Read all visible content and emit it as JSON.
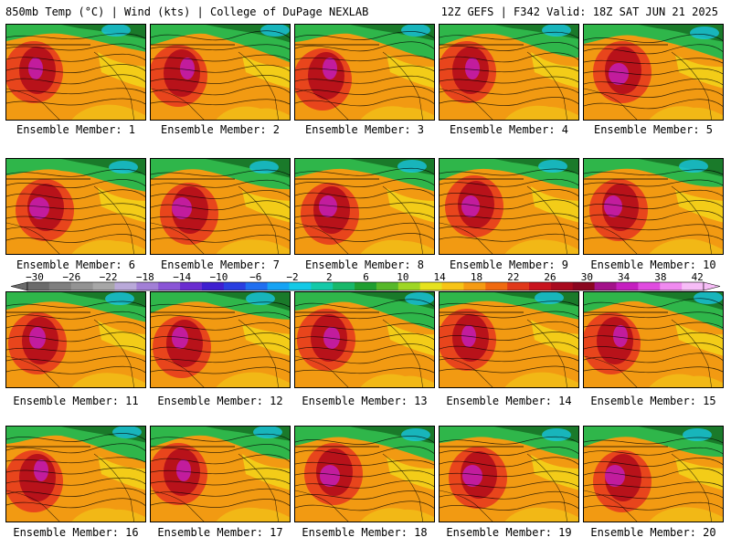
{
  "header": {
    "left": "850mb Temp (°C) | Wind (kts) | College of DuPage NEXLAB",
    "right": "12Z GEFS | F342 Valid: 18Z SAT JUN 21 2025"
  },
  "colors": {
    "cold": "#1a7a2a",
    "cool": "#2fb64a",
    "mild": "#f3d21a",
    "warm": "#f29a12",
    "hot": "#e8451c",
    "very_hot": "#b8121a",
    "extreme": "#c31fb5",
    "lake": "#18c4e0"
  },
  "colorbar": {
    "labels": [
      "−30",
      "−26",
      "−22",
      "−18",
      "−14",
      "−10",
      "−6",
      "−2",
      "2",
      "6",
      "10",
      "14",
      "18",
      "22",
      "26",
      "30",
      "34",
      "38",
      "42"
    ],
    "swatches": [
      "#6b6b6b",
      "#7f7f7f",
      "#939393",
      "#a7a7a7",
      "#b9a9d9",
      "#a27fd6",
      "#8a55d6",
      "#6a2dd0",
      "#3f1fd0",
      "#2a3fe0",
      "#1f6ff0",
      "#16a3f4",
      "#14c9e6",
      "#14c9a8",
      "#18b86a",
      "#1f9e30",
      "#56b82a",
      "#9ed624",
      "#e6e21e",
      "#f7c416",
      "#f59b12",
      "#f06a10",
      "#e0381a",
      "#c8141e",
      "#a80a1e",
      "#8a0620",
      "#a3128a",
      "#c51ec0",
      "#e04ce0",
      "#f08af0",
      "#f7bdf7"
    ]
  },
  "panels": [
    {
      "label": "Ensemble Member: 1"
    },
    {
      "label": "Ensemble Member: 2"
    },
    {
      "label": "Ensemble Member: 3"
    },
    {
      "label": "Ensemble Member: 4"
    },
    {
      "label": "Ensemble Member: 5"
    },
    {
      "label": "Ensemble Member: 6"
    },
    {
      "label": "Ensemble Member: 7"
    },
    {
      "label": "Ensemble Member: 8"
    },
    {
      "label": "Ensemble Member: 9"
    },
    {
      "label": "Ensemble Member: 10"
    },
    {
      "label": "Ensemble Member: 11"
    },
    {
      "label": "Ensemble Member: 12"
    },
    {
      "label": "Ensemble Member: 13"
    },
    {
      "label": "Ensemble Member: 14"
    },
    {
      "label": "Ensemble Member: 15"
    },
    {
      "label": "Ensemble Member: 16"
    },
    {
      "label": "Ensemble Member: 17"
    },
    {
      "label": "Ensemble Member: 18"
    },
    {
      "label": "Ensemble Member: 19"
    },
    {
      "label": "Ensemble Member: 20"
    }
  ]
}
